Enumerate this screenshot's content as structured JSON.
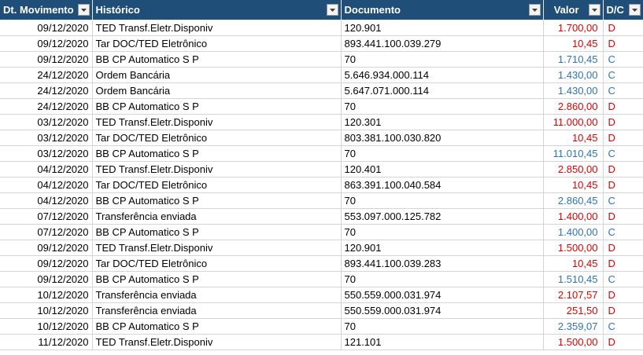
{
  "colors": {
    "header_bg": "#1f4e79",
    "debit": "#e00000",
    "credit": "#2e74b5"
  },
  "header": {
    "dt_label": "Dt. Movimento",
    "hist_label": "Histórico",
    "doc_label": "Documento",
    "valor_label": "Valor",
    "dc_label": "D/C",
    "filter_icon": "dropdown-arrow"
  },
  "rows": [
    {
      "dt": "09/12/2020",
      "hist": "TED Transf.Eletr.Disponiv",
      "doc": "120.901",
      "valor": "1.700,00",
      "dc": "D"
    },
    {
      "dt": "09/12/2020",
      "hist": "Tar DOC/TED Eletrônico",
      "doc": "893.441.100.039.279",
      "valor": "10,45",
      "dc": "D"
    },
    {
      "dt": "09/12/2020",
      "hist": "BB CP Automatico S P",
      "doc": "70",
      "valor": "1.710,45",
      "dc": "C"
    },
    {
      "dt": "24/12/2020",
      "hist": "Ordem Bancária",
      "doc": "5.646.934.000.114",
      "valor": "1.430,00",
      "dc": "C"
    },
    {
      "dt": "24/12/2020",
      "hist": "Ordem Bancária",
      "doc": "5.647.071.000.114",
      "valor": "1.430,00",
      "dc": "C"
    },
    {
      "dt": "24/12/2020",
      "hist": "BB CP Automatico S P",
      "doc": "70",
      "valor": "2.860,00",
      "dc": "D"
    },
    {
      "dt": "03/12/2020",
      "hist": "TED Transf.Eletr.Disponiv",
      "doc": "120.301",
      "valor": "11.000,00",
      "dc": "D"
    },
    {
      "dt": "03/12/2020",
      "hist": "Tar DOC/TED Eletrônico",
      "doc": "803.381.100.030.820",
      "valor": "10,45",
      "dc": "D"
    },
    {
      "dt": "03/12/2020",
      "hist": "BB CP Automatico S P",
      "doc": "70",
      "valor": "11.010,45",
      "dc": "C"
    },
    {
      "dt": "04/12/2020",
      "hist": "TED Transf.Eletr.Disponiv",
      "doc": "120.401",
      "valor": "2.850,00",
      "dc": "D"
    },
    {
      "dt": "04/12/2020",
      "hist": "Tar DOC/TED Eletrônico",
      "doc": "863.391.100.040.584",
      "valor": "10,45",
      "dc": "D"
    },
    {
      "dt": "04/12/2020",
      "hist": "BB CP Automatico S P",
      "doc": "70",
      "valor": "2.860,45",
      "dc": "C"
    },
    {
      "dt": "07/12/2020",
      "hist": "Transferência enviada",
      "doc": "553.097.000.125.782",
      "valor": "1.400,00",
      "dc": "D"
    },
    {
      "dt": "07/12/2020",
      "hist": "BB CP Automatico S P",
      "doc": "70",
      "valor": "1.400,00",
      "dc": "C"
    },
    {
      "dt": "09/12/2020",
      "hist": "TED Transf.Eletr.Disponiv",
      "doc": "120.901",
      "valor": "1.500,00",
      "dc": "D"
    },
    {
      "dt": "09/12/2020",
      "hist": "Tar DOC/TED Eletrônico",
      "doc": "893.441.100.039.283",
      "valor": "10,45",
      "dc": "D"
    },
    {
      "dt": "09/12/2020",
      "hist": "BB CP Automatico S P",
      "doc": "70",
      "valor": "1.510,45",
      "dc": "C"
    },
    {
      "dt": "10/12/2020",
      "hist": "Transferência enviada",
      "doc": "550.559.000.031.974",
      "valor": "2.107,57",
      "dc": "D"
    },
    {
      "dt": "10/12/2020",
      "hist": "Transferência enviada",
      "doc": "550.559.000.031.974",
      "valor": "251,50",
      "dc": "D"
    },
    {
      "dt": "10/12/2020",
      "hist": "BB CP Automatico S P",
      "doc": "70",
      "valor": "2.359,07",
      "dc": "C"
    },
    {
      "dt": "11/12/2020",
      "hist": "TED Transf.Eletr.Disponiv",
      "doc": "121.101",
      "valor": "1.500,00",
      "dc": "D"
    }
  ]
}
